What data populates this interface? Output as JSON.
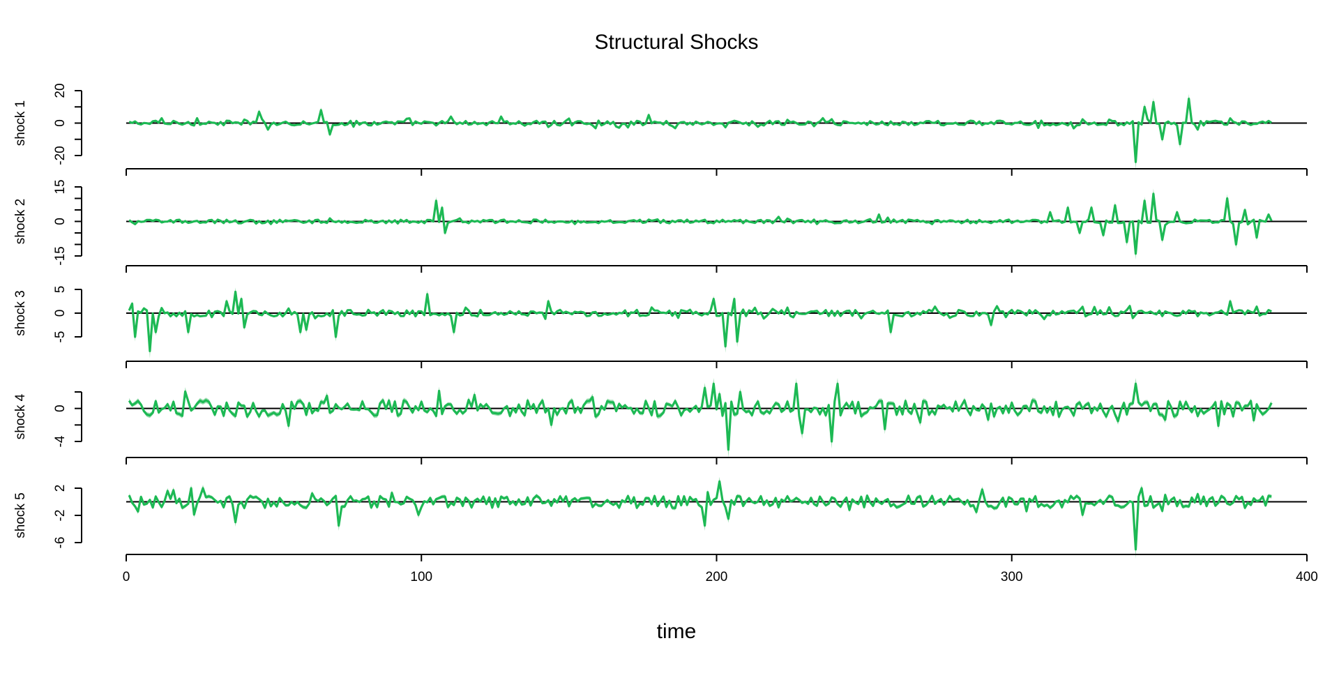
{
  "chart_data": {
    "type": "line",
    "title": "Structural Shocks",
    "xlabel": "time",
    "xlim": [
      0,
      400
    ],
    "x_ticks": [
      0,
      100,
      200,
      300,
      400
    ],
    "n_obs": 388,
    "colors": {
      "line": "#1db954",
      "band": "#7fd39a",
      "zero_line": "#000000",
      "axis": "#000000"
    },
    "panels": [
      {
        "name": "shock 1",
        "ylabel": "shock 1",
        "ylim": [
          -20,
          20
        ],
        "y_ticks": [
          -20,
          0,
          20
        ],
        "y_tick_labels": [
          "-20",
          "0",
          "20"
        ],
        "y_minor_ticks": [
          -10,
          10
        ],
        "baseline_amplitude": 1.5,
        "events": [
          {
            "x": 11,
            "y": 3
          },
          {
            "x": 23,
            "y": 3
          },
          {
            "x": 44,
            "y": 7
          },
          {
            "x": 47,
            "y": -4
          },
          {
            "x": 65,
            "y": 8
          },
          {
            "x": 68,
            "y": -7
          },
          {
            "x": 109,
            "y": 4
          },
          {
            "x": 126,
            "y": 4
          },
          {
            "x": 176,
            "y": 5
          },
          {
            "x": 235,
            "y": 3
          },
          {
            "x": 341,
            "y": -24
          },
          {
            "x": 344,
            "y": 10
          },
          {
            "x": 347,
            "y": 13
          },
          {
            "x": 350,
            "y": -10
          },
          {
            "x": 356,
            "y": -13
          },
          {
            "x": 359,
            "y": 15
          },
          {
            "x": 362,
            "y": -4
          }
        ]
      },
      {
        "name": "shock 2",
        "ylabel": "shock 2",
        "ylim": [
          -15,
          15
        ],
        "y_ticks": [
          -15,
          0,
          15
        ],
        "y_tick_labels": [
          "-15",
          "0",
          "15"
        ],
        "y_minor_ticks": [
          -10,
          -5,
          5,
          10
        ],
        "baseline_amplitude": 0.8,
        "events": [
          {
            "x": 104,
            "y": 9
          },
          {
            "x": 106,
            "y": 6
          },
          {
            "x": 107,
            "y": -5
          },
          {
            "x": 220,
            "y": 2
          },
          {
            "x": 254,
            "y": 3
          },
          {
            "x": 312,
            "y": 4
          },
          {
            "x": 318,
            "y": 6
          },
          {
            "x": 322,
            "y": -5
          },
          {
            "x": 326,
            "y": 6
          },
          {
            "x": 330,
            "y": -6
          },
          {
            "x": 334,
            "y": 7
          },
          {
            "x": 338,
            "y": -9
          },
          {
            "x": 341,
            "y": -14
          },
          {
            "x": 344,
            "y": 9
          },
          {
            "x": 347,
            "y": 12
          },
          {
            "x": 350,
            "y": -8
          },
          {
            "x": 355,
            "y": 4
          },
          {
            "x": 372,
            "y": 10
          },
          {
            "x": 375,
            "y": -10
          },
          {
            "x": 378,
            "y": 5
          },
          {
            "x": 382,
            "y": -7
          },
          {
            "x": 386,
            "y": 3
          }
        ]
      },
      {
        "name": "shock 3",
        "ylabel": "shock 3",
        "ylim": [
          -5,
          5
        ],
        "y_ticks": [
          -5,
          0,
          5
        ],
        "y_tick_labels": [
          "-5",
          "0",
          "5"
        ],
        "y_minor_ticks": [],
        "baseline_amplitude": 0.7,
        "events": [
          {
            "x": 1,
            "y": 2
          },
          {
            "x": 2,
            "y": -5
          },
          {
            "x": 5,
            "y": 1
          },
          {
            "x": 7,
            "y": -8
          },
          {
            "x": 9,
            "y": -4
          },
          {
            "x": 20,
            "y": -4
          },
          {
            "x": 33,
            "y": 2.5
          },
          {
            "x": 36,
            "y": 4.5
          },
          {
            "x": 38,
            "y": 3
          },
          {
            "x": 39,
            "y": -3
          },
          {
            "x": 58,
            "y": -4
          },
          {
            "x": 60,
            "y": -3.5
          },
          {
            "x": 70,
            "y": -5
          },
          {
            "x": 101,
            "y": 4
          },
          {
            "x": 110,
            "y": -4
          },
          {
            "x": 142,
            "y": 2.5
          },
          {
            "x": 198,
            "y": 3
          },
          {
            "x": 202,
            "y": -7
          },
          {
            "x": 205,
            "y": 3
          },
          {
            "x": 206,
            "y": -6
          },
          {
            "x": 258,
            "y": -4
          },
          {
            "x": 292,
            "y": -2.5
          },
          {
            "x": 373,
            "y": 2.5
          }
        ]
      },
      {
        "name": "shock 4",
        "ylabel": "shock 4",
        "ylim": [
          -4,
          2
        ],
        "y_ticks": [
          -4,
          0
        ],
        "y_tick_labels": [
          "-4",
          "0"
        ],
        "y_minor_ticks": [
          -2,
          2
        ],
        "baseline_amplitude": 1.0,
        "events": [
          {
            "x": 195,
            "y": 2.5
          },
          {
            "x": 198,
            "y": 3
          },
          {
            "x": 203,
            "y": -5
          },
          {
            "x": 207,
            "y": 2
          },
          {
            "x": 226,
            "y": 3
          },
          {
            "x": 228,
            "y": -3
          },
          {
            "x": 238,
            "y": -4
          },
          {
            "x": 240,
            "y": 3
          },
          {
            "x": 256,
            "y": -2.5
          },
          {
            "x": 341,
            "y": 3
          }
        ]
      },
      {
        "name": "shock 5",
        "ylabel": "shock 5",
        "ylim": [
          -6,
          2
        ],
        "y_ticks": [
          -6,
          -2,
          2
        ],
        "y_tick_labels": [
          "-6",
          "-2",
          "2"
        ],
        "y_minor_ticks": [],
        "baseline_amplitude": 0.9,
        "events": [
          {
            "x": 21,
            "y": 2
          },
          {
            "x": 25,
            "y": 2
          },
          {
            "x": 36,
            "y": -3
          },
          {
            "x": 71,
            "y": -3.5
          },
          {
            "x": 195,
            "y": -3.5
          },
          {
            "x": 200,
            "y": 3
          },
          {
            "x": 203,
            "y": -2.5
          },
          {
            "x": 341,
            "y": -7
          },
          {
            "x": 343,
            "y": 2
          }
        ]
      }
    ]
  }
}
